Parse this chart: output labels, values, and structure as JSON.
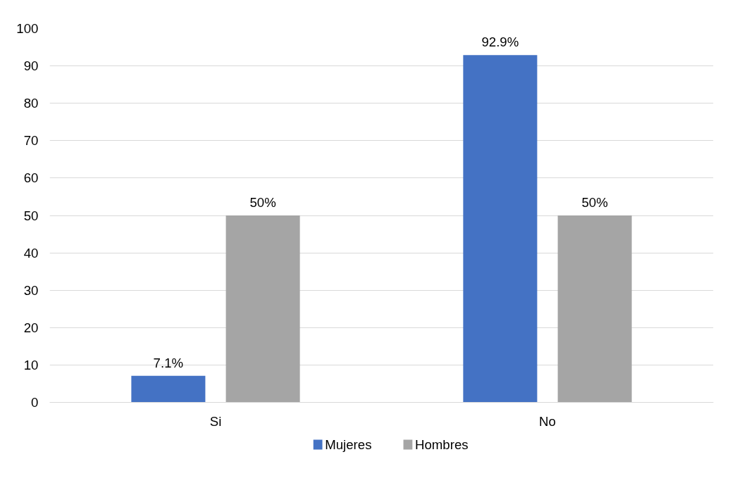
{
  "chart_data": {
    "type": "bar",
    "categories": [
      "Si",
      "No"
    ],
    "series": [
      {
        "name": "Mujeres",
        "color": "#4472c4",
        "values": [
          7.1,
          92.9
        ],
        "value_labels": [
          "7.1%",
          "92.9%"
        ]
      },
      {
        "name": "Hombres",
        "color": "#a5a5a5",
        "values": [
          50,
          50
        ],
        "value_labels": [
          "50%",
          "50%"
        ]
      }
    ],
    "ylim": [
      0,
      100
    ],
    "yticks": [
      0,
      10,
      20,
      30,
      40,
      50,
      60,
      70,
      80,
      90,
      100
    ],
    "grid": "y",
    "legend": "bottom"
  }
}
